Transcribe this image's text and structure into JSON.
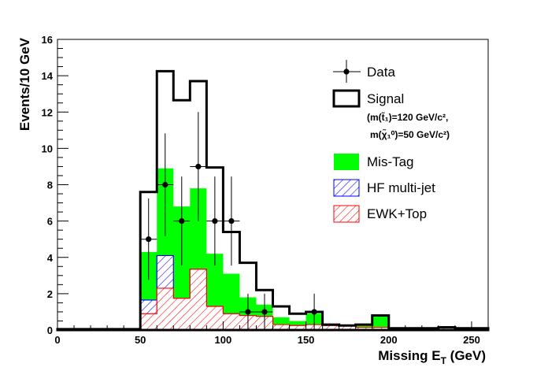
{
  "chart_data": {
    "type": "histogram",
    "xlabel": "Missing E",
    "xlabel_sub": "T",
    "xlabel_unit": " (GeV)",
    "ylabel": "Events/10 GeV",
    "xlim": [
      0,
      260
    ],
    "ylim": [
      0,
      16
    ],
    "x_ticks": [
      0,
      50,
      100,
      150,
      200,
      250
    ],
    "y_ticks": [
      0,
      2,
      4,
      6,
      8,
      10,
      12,
      14,
      16
    ],
    "grid": false,
    "legend_placement": "top-right",
    "bins": [
      [
        0,
        10
      ],
      [
        10,
        20
      ],
      [
        20,
        30
      ],
      [
        30,
        40
      ],
      [
        40,
        50
      ],
      [
        50,
        60
      ],
      [
        60,
        70
      ],
      [
        70,
        80
      ],
      [
        80,
        90
      ],
      [
        90,
        100
      ],
      [
        100,
        110
      ],
      [
        110,
        120
      ],
      [
        120,
        130
      ],
      [
        130,
        140
      ],
      [
        140,
        150
      ],
      [
        150,
        160
      ],
      [
        160,
        170
      ],
      [
        170,
        180
      ],
      [
        180,
        190
      ],
      [
        190,
        200
      ],
      [
        200,
        210
      ],
      [
        210,
        220
      ],
      [
        220,
        230
      ],
      [
        230,
        240
      ],
      [
        240,
        250
      ],
      [
        250,
        260
      ]
    ],
    "series": [
      {
        "name": "EWK+Top",
        "color": "#ff0000",
        "style": "hatched",
        "stack_top": [
          0.05,
          0.05,
          0.05,
          0.05,
          0.05,
          0.9,
          2.3,
          1.75,
          3.35,
          1.3,
          0.9,
          0.8,
          0.75,
          0.3,
          0.25,
          0.3,
          0.25,
          0.25,
          0.15,
          0.15,
          0.1,
          0.1,
          0.1,
          0.15,
          0.1,
          0.1
        ]
      },
      {
        "name": "HF multi-jet",
        "color": "#0000ff",
        "style": "hatched",
        "stack_top": [
          0.05,
          0.05,
          0.05,
          0.05,
          0.05,
          1.65,
          4.1,
          1.75,
          3.35,
          1.3,
          0.9,
          0.8,
          0.75,
          0.3,
          0.25,
          0.3,
          0.25,
          0.25,
          0.15,
          0.15,
          0.1,
          0.1,
          0.1,
          0.15,
          0.1,
          0.1
        ]
      },
      {
        "name": "Mis-Tag",
        "color": "#00ff00",
        "style": "filled",
        "stack_top": [
          0.05,
          0.05,
          0.05,
          0.05,
          0.05,
          4.3,
          8.9,
          6.8,
          7.8,
          4.2,
          3.1,
          1.8,
          1.4,
          0.7,
          0.5,
          0.9,
          0.3,
          0.25,
          0.3,
          0.8,
          0.1,
          0.1,
          0.1,
          0.15,
          0.1,
          0.1
        ]
      },
      {
        "name": "Signal",
        "color": "#000000",
        "style": "outline",
        "stack_top": [
          0.05,
          0.05,
          0.05,
          0.05,
          0.05,
          7.6,
          14.25,
          12.65,
          13.7,
          8.95,
          5.4,
          3.7,
          2.2,
          1.3,
          0.9,
          1.0,
          0.3,
          0.25,
          0.3,
          0.8,
          0.1,
          0.1,
          0.1,
          0.15,
          0.1,
          0.1
        ]
      }
    ],
    "signal_note": [
      "(m(t̃₁)=120 GeV/c²,",
      "m(χ̃₁⁰)=50 GeV/c²)"
    ],
    "data": {
      "name": "Data",
      "x": [
        55,
        65,
        75,
        85,
        95,
        105,
        115,
        125,
        155
      ],
      "y": [
        5,
        8,
        6,
        9,
        6,
        6,
        1,
        1,
        1
      ],
      "yerr": [
        2.24,
        2.83,
        2.45,
        3.0,
        2.45,
        2.45,
        1.0,
        1.0,
        1.0
      ]
    }
  },
  "legend": {
    "data_label": "Data",
    "signal_label": "Signal",
    "mistag_label": "Mis-Tag",
    "hf_label": "HF multi-jet",
    "ewk_label": "EWK+Top"
  },
  "colors": {
    "mistag": "#00ff00",
    "hf": "#0000ff",
    "ewk": "#ff0000",
    "signal": "#000000"
  }
}
